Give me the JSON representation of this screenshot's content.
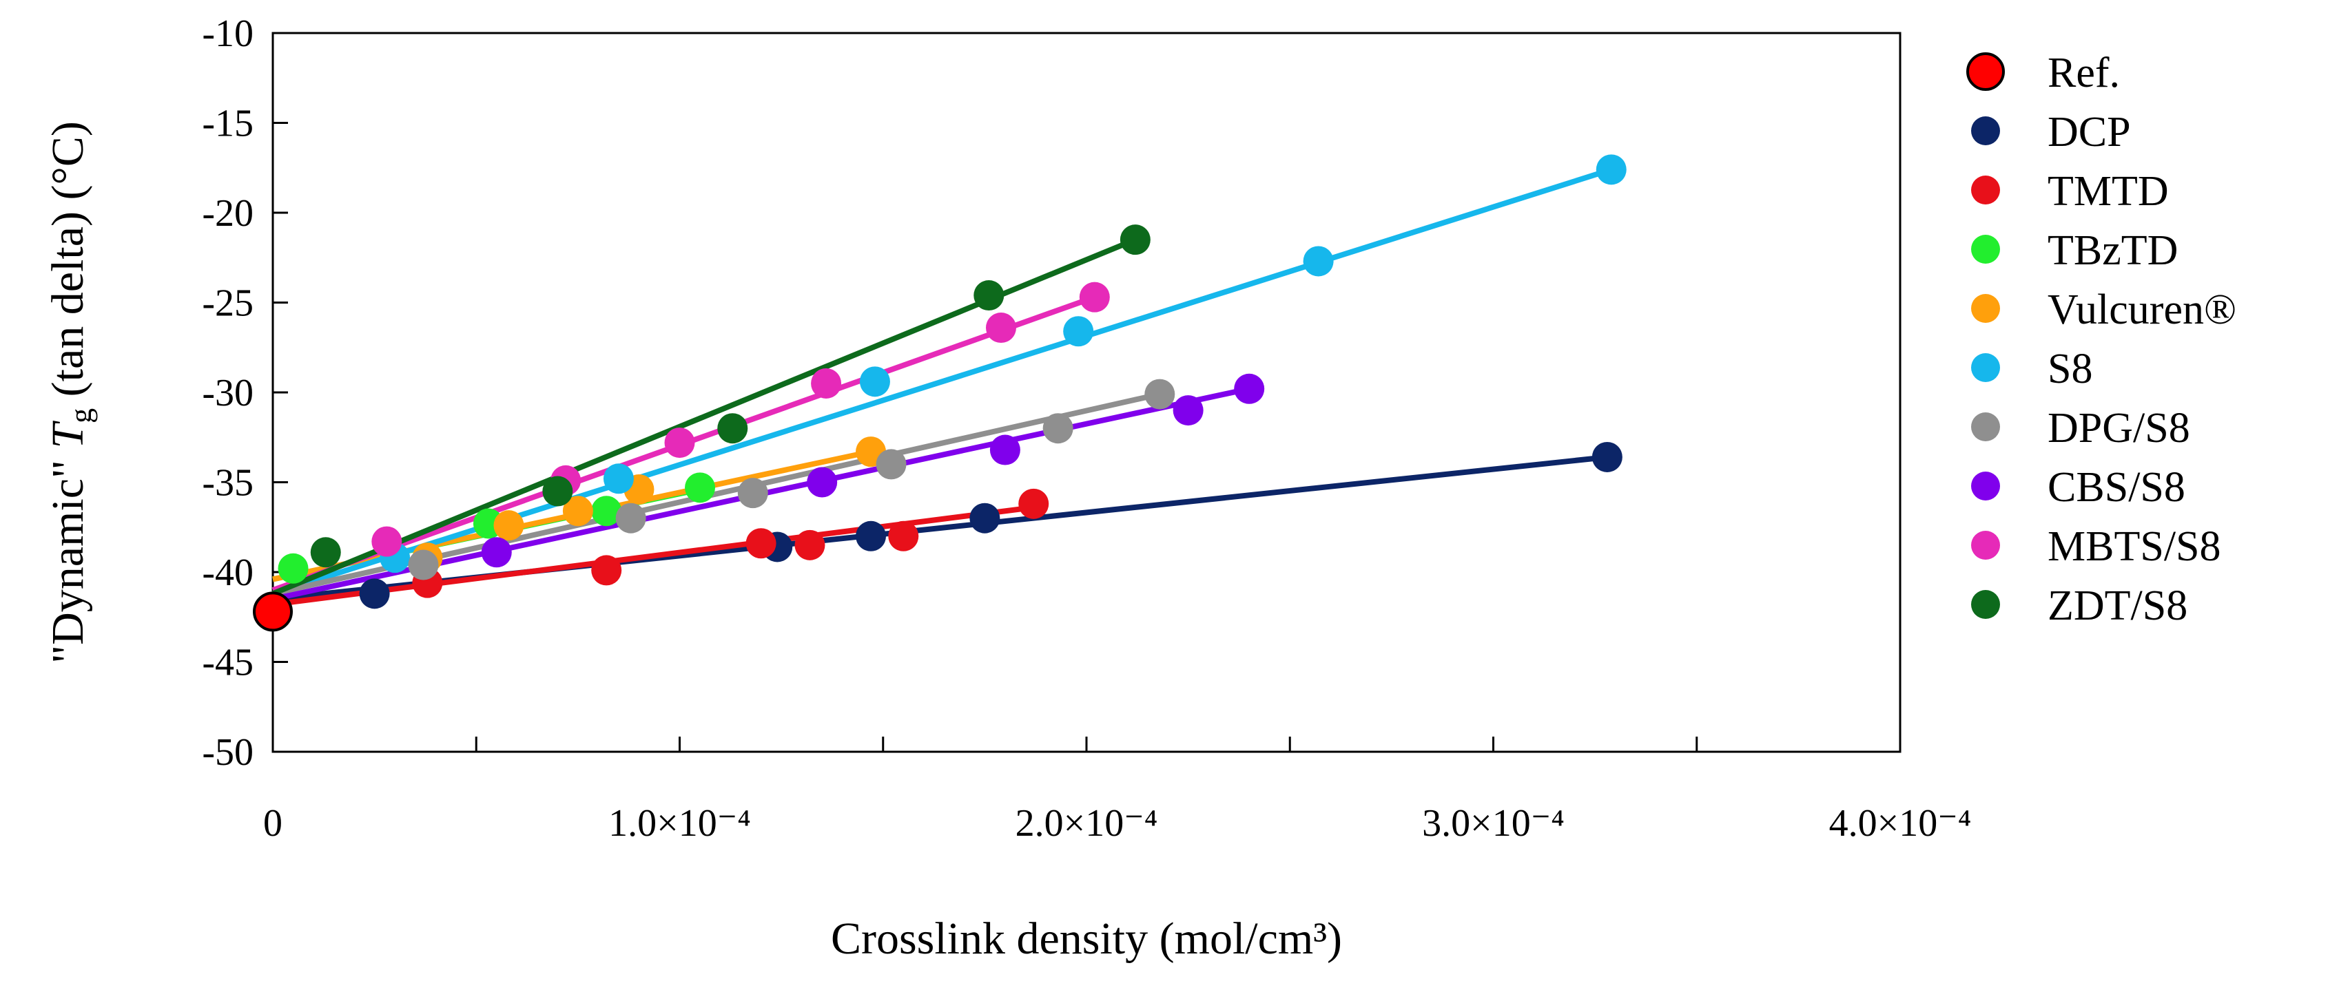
{
  "chart_data": {
    "type": "scatter",
    "title": "",
    "xlabel": "Crosslink density (mol/cm³)",
    "ylabel": "\"Dynamic\" Tg (tan delta) (°C)",
    "ylabel_parts": {
      "pre": "\"Dynamic\" ",
      "T": "T",
      "sub": "g",
      "post": " (tan delta) (°C)"
    },
    "xlim": [
      0,
      0.0004
    ],
    "ylim": [
      -50,
      -10
    ],
    "x_ticks": [
      0,
      0.0001,
      0.0002,
      0.0003,
      0.0004
    ],
    "x_tick_labels": [
      "0",
      "1.0×10⁻⁴",
      "2.0×10⁻⁴",
      "3.0×10⁻⁴",
      "4.0×10⁻⁴"
    ],
    "y_ticks": [
      -10,
      -15,
      -20,
      -25,
      -30,
      -35,
      -40,
      -45,
      -50
    ],
    "y_tick_labels": [
      "-10",
      "-15",
      "-20",
      "-25",
      "-30",
      "-35",
      "-40",
      "-45",
      "-50"
    ],
    "legend_position": "right",
    "series": [
      {
        "name": "Ref.",
        "color": "#ff0000",
        "outline": "#000000",
        "x": [
          0.0
        ],
        "y": [
          -42.2
        ],
        "fit": null
      },
      {
        "name": "DCP",
        "color": "#0c2567",
        "x": [
          2.5e-05,
          0.000124,
          0.000147,
          0.000175,
          0.000328
        ],
        "y": [
          -41.2,
          -38.6,
          -38.0,
          -37.0,
          -33.6
        ],
        "fit": [
          [
            0,
            -41.5
          ],
          [
            0.000328,
            -33.6
          ]
        ]
      },
      {
        "name": "TMTD",
        "color": "#e8101a",
        "x": [
          3.8e-05,
          8.2e-05,
          0.00012,
          0.000132,
          0.000155,
          0.000187
        ],
        "y": [
          -40.6,
          -39.9,
          -38.4,
          -38.5,
          -38.0,
          -36.2
        ],
        "fit": [
          [
            0,
            -41.8
          ],
          [
            0.000187,
            -36.4
          ]
        ]
      },
      {
        "name": "TBzTD",
        "color": "#22ee2e",
        "x": [
          5e-06,
          5.3e-05,
          8.2e-05,
          0.000105
        ],
        "y": [
          -39.8,
          -37.3,
          -36.6,
          -35.3
        ],
        "fit": [
          [
            0,
            -40.4
          ],
          [
            0.000105,
            -35.4
          ]
        ]
      },
      {
        "name": "Vulcuren®",
        "color": "#ffa00c",
        "x": [
          3.8e-05,
          5.8e-05,
          7.5e-05,
          9e-05,
          0.000147
        ],
        "y": [
          -39.2,
          -37.4,
          -36.6,
          -35.4,
          -33.3
        ],
        "fit": [
          [
            0,
            -40.4
          ],
          [
            0.000147,
            -33.3
          ]
        ]
      },
      {
        "name": "S8",
        "color": "#16b7ec",
        "x": [
          3e-05,
          8.5e-05,
          0.000148,
          0.000198,
          0.000257,
          0.000329
        ],
        "y": [
          -39.2,
          -34.8,
          -29.4,
          -26.6,
          -22.7,
          -17.6
        ],
        "fit": [
          [
            0,
            -41.2
          ],
          [
            0.000329,
            -17.6
          ]
        ]
      },
      {
        "name": "DPG/S8",
        "color": "#8f8f8f",
        "x": [
          3.7e-05,
          8.8e-05,
          0.000118,
          0.000152,
          0.000193,
          0.000218
        ],
        "y": [
          -39.6,
          -37.0,
          -35.6,
          -34.0,
          -32.0,
          -30.1
        ],
        "fit": [
          [
            0,
            -41.2
          ],
          [
            0.000218,
            -30.1
          ]
        ]
      },
      {
        "name": "CBS/S8",
        "color": "#8000ec",
        "x": [
          5.5e-05,
          0.000135,
          0.00018,
          0.000225,
          0.00024
        ],
        "y": [
          -38.9,
          -35.0,
          -33.2,
          -31.0,
          -29.8
        ],
        "fit": [
          [
            0,
            -41.5
          ],
          [
            0.00024,
            -29.8
          ]
        ]
      },
      {
        "name": "MBTS/S8",
        "color": "#e62ab8",
        "x": [
          2.8e-05,
          7.2e-05,
          0.0001,
          0.000136,
          0.000179,
          0.000202
        ],
        "y": [
          -38.3,
          -34.9,
          -32.8,
          -29.5,
          -26.4,
          -24.7
        ],
        "fit": [
          [
            0,
            -41.0
          ],
          [
            0.000202,
            -24.7
          ]
        ]
      },
      {
        "name": "ZDT/S8",
        "color": "#0d6a1c",
        "x": [
          1.3e-05,
          7e-05,
          0.000113,
          0.000176,
          0.000212
        ],
        "y": [
          -38.9,
          -35.5,
          -32.0,
          -24.6,
          -21.5
        ],
        "fit": [
          [
            0,
            -41.2
          ],
          [
            0.000212,
            -21.5
          ]
        ]
      }
    ]
  }
}
